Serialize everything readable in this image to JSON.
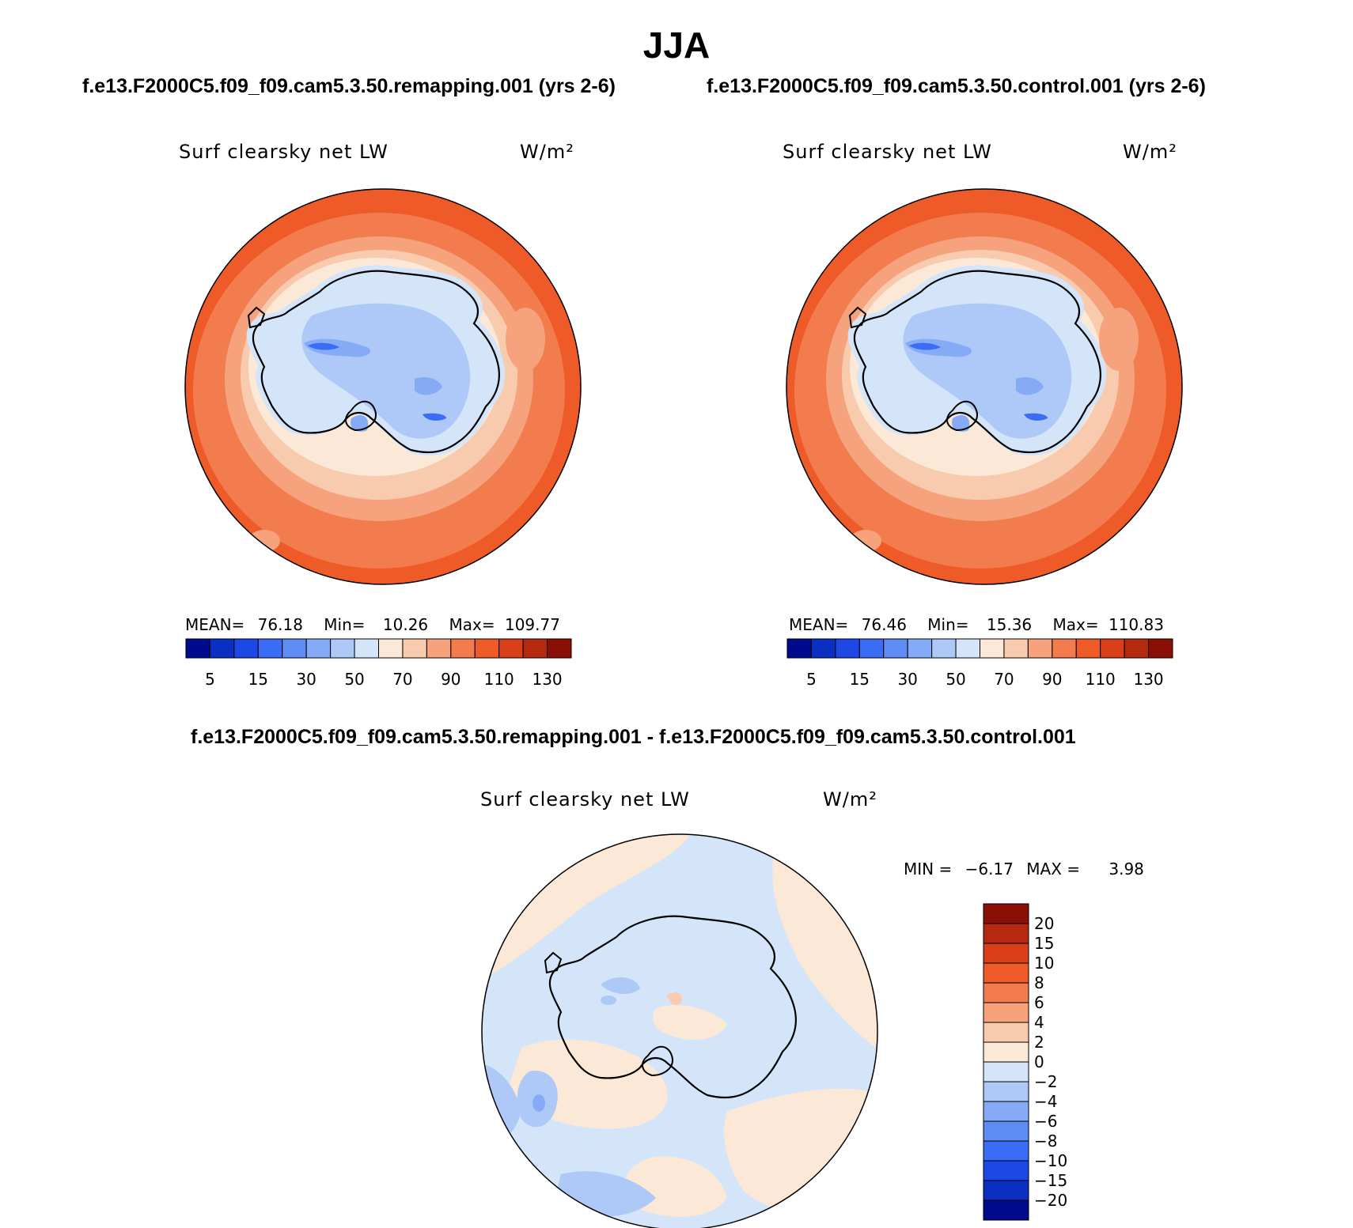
{
  "figure": {
    "season": "JJA"
  },
  "panels": [
    {
      "case_title": "f.e13.F2000C5.f09_f09.cam5.3.50.remapping.001 (yrs 2-6)",
      "variable": "Surf clearsky net LW",
      "units": "W/m²",
      "mean_label": "MEAN=",
      "mean_value": "76.18",
      "min_label": "Min=",
      "min_value": "10.26",
      "max_label": "Max=",
      "max_value": "109.77"
    },
    {
      "case_title": "f.e13.F2000C5.f09_f09.cam5.3.50.control.001 (yrs 2-6)",
      "variable": "Surf clearsky net LW",
      "units": "W/m²",
      "mean_label": "MEAN=",
      "mean_value": "76.46",
      "min_label": "Min=",
      "min_value": "15.36",
      "max_label": "Max=",
      "max_value": "110.83"
    },
    {
      "case_title": "f.e13.F2000C5.f09_f09.cam5.3.50.remapping.001 - f.e13.F2000C5.f09_f09.cam5.3.50.control.001",
      "variable": "Surf clearsky net LW",
      "units": "W/m²",
      "min_label": "MIN =",
      "min_value": "−6.17",
      "max_label": "MAX =",
      "max_value": "3.98"
    }
  ],
  "colorbars": {
    "absolute": {
      "colors": [
        "#000a8c",
        "#0a2fc2",
        "#1e48e6",
        "#3b6cf5",
        "#5f8df5",
        "#86abf6",
        "#aec8f8",
        "#d4e5fa",
        "#fbe8d6",
        "#f8cbae",
        "#f6a37d",
        "#f27c4e",
        "#ee5a28",
        "#d9401a",
        "#b52910",
        "#8a0f06"
      ],
      "tick_labels": [
        "5",
        "15",
        "30",
        "50",
        "70",
        "90",
        "110",
        "130"
      ]
    },
    "difference": {
      "colors": [
        "#8a0f06",
        "#b52910",
        "#d9401a",
        "#ee5a28",
        "#f27c4e",
        "#f6a37d",
        "#f8cbae",
        "#fbe8d6",
        "#d4e5fa",
        "#aec8f8",
        "#86abf6",
        "#5f8df5",
        "#3b6cf5",
        "#1e48e6",
        "#0a2fc2",
        "#000a8c"
      ],
      "tick_labels": [
        "20",
        "15",
        "10",
        "8",
        "6",
        "4",
        "2",
        "0",
        "−2",
        "−4",
        "−6",
        "−8",
        "−10",
        "−15",
        "−20"
      ]
    }
  },
  "map_colors": {
    "ocean_far": "#ee5a28",
    "ocean_mid": "#f27c4e",
    "ocean_near": "#f6a37d",
    "coast_band": "#f8cbae",
    "shelf_band": "#fbe8d6",
    "ice_light": "#d4e5fa",
    "ice_mid": "#aec8f8",
    "ice_dark": "#86abf6",
    "ice_deep": "#3b6cf5",
    "diff_pos": "#fbe8d6",
    "diff_pos2": "#f8cbae",
    "diff_neg": "#d4e5fa",
    "diff_neg2": "#aec8f8",
    "diff_neg3": "#86abf6"
  }
}
